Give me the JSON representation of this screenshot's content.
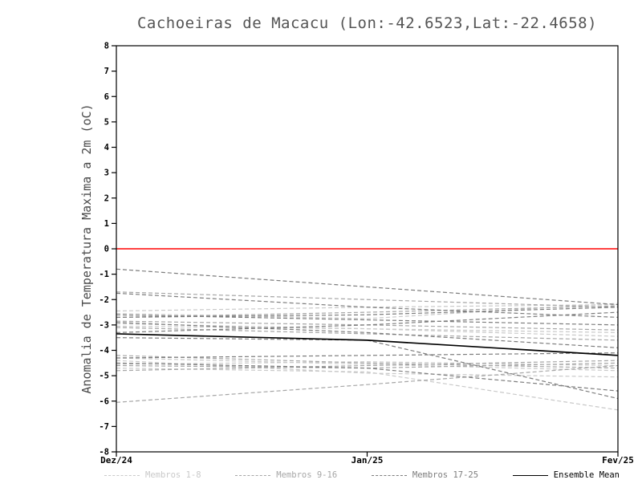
{
  "chart_data": {
    "type": "line",
    "title": "Cachoeiras de Macacu (Lon:-42.6523,Lat:-22.4658)",
    "ylabel": "Anomalia de Temperatura Maxima a 2m (oC)",
    "xlabel": "",
    "x_tick_labels": [
      "Dez/24",
      "Jan/25",
      "Fev/25"
    ],
    "ylim": [
      -8,
      8
    ],
    "y_tick_step": 1,
    "grid": false,
    "legend_position": "bottom",
    "zero_line_color": "#ff0000",
    "frame_color": "#000000",
    "groups": [
      {
        "name": "Membros 1-8",
        "color": "#c9c9c9",
        "style": "dashed"
      },
      {
        "name": "Membros 9-16",
        "color": "#a6a6a6",
        "style": "dashed"
      },
      {
        "name": "Membros 17-25",
        "color": "#7d7d7d",
        "style": "dashed"
      },
      {
        "name": "Ensemble Mean",
        "color": "#000000",
        "style": "solid"
      }
    ],
    "series": [
      {
        "group": 0,
        "name": "member-1",
        "values": [
          -2.55,
          -2.75,
          -2.15
        ]
      },
      {
        "group": 0,
        "name": "member-2",
        "values": [
          -2.95,
          -3.15,
          -3.45
        ]
      },
      {
        "group": 0,
        "name": "member-3",
        "values": [
          -4.3,
          -4.55,
          -4.8
        ]
      },
      {
        "group": 0,
        "name": "member-4",
        "values": [
          -4.55,
          -4.45,
          -4.6
        ]
      },
      {
        "group": 0,
        "name": "member-5",
        "values": [
          -4.7,
          -4.85,
          -6.35
        ]
      },
      {
        "group": 0,
        "name": "member-6",
        "values": [
          -2.45,
          -2.3,
          -2.2
        ]
      },
      {
        "group": 0,
        "name": "member-7",
        "values": [
          -3.05,
          -3.15,
          -3.3
        ]
      },
      {
        "group": 0,
        "name": "member-8",
        "values": [
          -4.4,
          -4.9,
          -5.05
        ]
      },
      {
        "group": 1,
        "name": "member-9",
        "values": [
          -1.7,
          -2.0,
          -2.3
        ]
      },
      {
        "group": 1,
        "name": "member-10",
        "values": [
          -2.7,
          -2.5,
          -2.25
        ]
      },
      {
        "group": 1,
        "name": "member-11",
        "values": [
          -3.1,
          -3.35,
          -3.6
        ]
      },
      {
        "group": 1,
        "name": "member-12",
        "values": [
          -4.2,
          -4.5,
          -4.7
        ]
      },
      {
        "group": 1,
        "name": "member-13",
        "values": [
          -4.6,
          -4.7,
          -4.5
        ]
      },
      {
        "group": 1,
        "name": "member-14",
        "values": [
          -6.05,
          -5.35,
          -4.6
        ]
      },
      {
        "group": 1,
        "name": "member-15",
        "values": [
          -2.85,
          -3.0,
          -3.2
        ]
      },
      {
        "group": 1,
        "name": "member-16",
        "values": [
          -4.8,
          -4.6,
          -4.4
        ]
      },
      {
        "group": 2,
        "name": "member-17",
        "values": [
          -0.8,
          -1.5,
          -2.2
        ]
      },
      {
        "group": 2,
        "name": "member-18",
        "values": [
          -1.75,
          -2.3,
          -2.7
        ]
      },
      {
        "group": 2,
        "name": "member-19",
        "values": [
          -2.6,
          -2.8,
          -3.0
        ]
      },
      {
        "group": 2,
        "name": "member-20",
        "values": [
          -2.9,
          -3.3,
          -3.9
        ]
      },
      {
        "group": 2,
        "name": "member-21",
        "values": [
          -3.3,
          -3.0,
          -2.5
        ]
      },
      {
        "group": 2,
        "name": "member-22",
        "values": [
          -3.5,
          -3.6,
          -5.9
        ]
      },
      {
        "group": 2,
        "name": "member-23",
        "values": [
          -4.3,
          -4.2,
          -4.1
        ]
      },
      {
        "group": 2,
        "name": "member-24",
        "values": [
          -4.5,
          -4.7,
          -5.6
        ]
      },
      {
        "group": 2,
        "name": "member-25",
        "values": [
          -2.7,
          -2.6,
          -2.3
        ]
      },
      {
        "group": 3,
        "name": "Ensemble Mean",
        "values": [
          -3.35,
          -3.6,
          -4.2
        ]
      }
    ]
  }
}
